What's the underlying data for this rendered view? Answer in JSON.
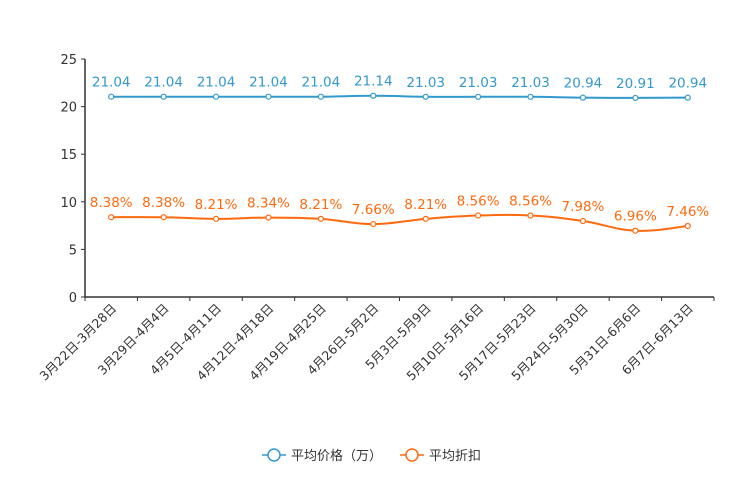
{
  "chart_data": {
    "type": "line",
    "title": "",
    "xlabel": "",
    "ylabel": "",
    "ylim": [
      0,
      25
    ],
    "yticks": [
      0,
      5,
      10,
      15,
      20,
      25
    ],
    "grid": false,
    "legend_position": "bottom-center",
    "categories": [
      "3月22日-3月28日",
      "3月29日-4月4日",
      "4月5日-4月11日",
      "4月12日-4月18日",
      "4月19日-4月25日",
      "4月26日-5月2日",
      "5月3日-5月9日",
      "5月10日-5月16日",
      "5月17日-5月23日",
      "5月24日-5月30日",
      "5月31日-6月6日",
      "6月7日-6月13日"
    ],
    "series": [
      {
        "name": "平均价格（万）",
        "color": "#3399cc",
        "values": [
          21.04,
          21.04,
          21.04,
          21.04,
          21.04,
          21.14,
          21.03,
          21.03,
          21.03,
          20.94,
          20.91,
          20.94
        ],
        "labels": [
          "21.04",
          "21.04",
          "21.04",
          "21.04",
          "21.04",
          "21.14",
          "21.03",
          "21.03",
          "21.03",
          "20.94",
          "20.91",
          "20.94"
        ]
      },
      {
        "name": "平均折扣",
        "color": "#ff6a10",
        "values": [
          8.38,
          8.38,
          8.21,
          8.34,
          8.21,
          7.66,
          8.21,
          8.56,
          8.56,
          7.98,
          6.96,
          7.46
        ],
        "labels": [
          "8.38%",
          "8.38%",
          "8.21%",
          "8.34%",
          "8.21%",
          "7.66%",
          "8.21%",
          "8.56%",
          "8.56%",
          "7.98%",
          "6.96%",
          "7.46%"
        ]
      }
    ]
  }
}
